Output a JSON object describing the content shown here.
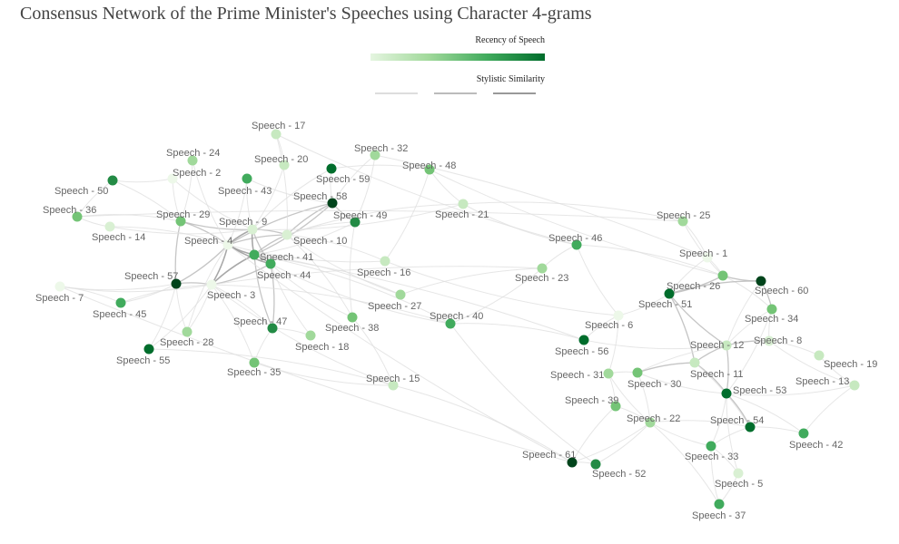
{
  "title": "Consensus Network of the Prime Minister's Speeches using Character 4-grams",
  "legend": {
    "recency_title": "Recency of Speech",
    "similarity_title": "Stylistic Similarity",
    "recency_colors": [
      "#e5f5e0",
      "#a1d99b",
      "#41ab5d",
      "#006d2c"
    ],
    "similarity_colors": [
      "#dddddd",
      "#bbbbbb",
      "#999999"
    ]
  },
  "nodes": [
    {
      "id": 17,
      "label": "Speech - 17",
      "color": "#c7e9c0"
    },
    {
      "id": 24,
      "label": "Speech - 24",
      "color": "#a1d99b"
    },
    {
      "id": 20,
      "label": "Speech - 20",
      "color": "#c7e9c0"
    },
    {
      "id": 32,
      "label": "Speech - 32",
      "color": "#a1d99b"
    },
    {
      "id": 2,
      "label": "Speech - 2",
      "color": "#edf8e9"
    },
    {
      "id": 59,
      "label": "Speech - 59",
      "color": "#006d2c"
    },
    {
      "id": 48,
      "label": "Speech - 48",
      "color": "#74c476"
    },
    {
      "id": 50,
      "label": "Speech - 50",
      "color": "#238b45"
    },
    {
      "id": 43,
      "label": "Speech - 43",
      "color": "#41ab5d"
    },
    {
      "id": 58,
      "label": "Speech - 58",
      "color": "#00441b"
    },
    {
      "id": 36,
      "label": "Speech - 36",
      "color": "#74c476"
    },
    {
      "id": 29,
      "label": "Speech - 29",
      "color": "#74c476"
    },
    {
      "id": 49,
      "label": "Speech - 49",
      "color": "#238b45"
    },
    {
      "id": 21,
      "label": "Speech - 21",
      "color": "#c7e9c0"
    },
    {
      "id": 25,
      "label": "Speech - 25",
      "color": "#a1d99b"
    },
    {
      "id": 9,
      "label": "Speech - 9",
      "color": "#d9f0d3"
    },
    {
      "id": 14,
      "label": "Speech - 14",
      "color": "#d9f0d3"
    },
    {
      "id": 4,
      "label": "Speech - 4",
      "color": "#edf8e9"
    },
    {
      "id": 10,
      "label": "Speech - 10",
      "color": "#d9f0d3"
    },
    {
      "id": 46,
      "label": "Speech - 46",
      "color": "#41ab5d"
    },
    {
      "id": 41,
      "label": "Speech - 41",
      "color": "#41ab5d"
    },
    {
      "id": 1,
      "label": "Speech - 1",
      "color": "#edf8e9"
    },
    {
      "id": 44,
      "label": "Speech - 44",
      "color": "#41ab5d"
    },
    {
      "id": 16,
      "label": "Speech - 16",
      "color": "#c7e9c0"
    },
    {
      "id": 23,
      "label": "Speech - 23",
      "color": "#a1d99b"
    },
    {
      "id": 57,
      "label": "Speech - 57",
      "color": "#00441b"
    },
    {
      "id": 7,
      "label": "Speech - 7",
      "color": "#edf8e9"
    },
    {
      "id": 26,
      "label": "Speech - 26",
      "color": "#74c476"
    },
    {
      "id": 60,
      "label": "Speech - 60",
      "color": "#00441b"
    },
    {
      "id": 3,
      "label": "Speech - 3",
      "color": "#edf8e9"
    },
    {
      "id": 51,
      "label": "Speech - 51",
      "color": "#006d2c"
    },
    {
      "id": 27,
      "label": "Speech - 27",
      "color": "#a1d99b"
    },
    {
      "id": 45,
      "label": "Speech - 45",
      "color": "#41ab5d"
    },
    {
      "id": 34,
      "label": "Speech - 34",
      "color": "#74c476"
    },
    {
      "id": 47,
      "label": "Speech - 47",
      "color": "#238b45"
    },
    {
      "id": 38,
      "label": "Speech - 38",
      "color": "#74c476"
    },
    {
      "id": 40,
      "label": "Speech - 40",
      "color": "#41ab5d"
    },
    {
      "id": 6,
      "label": "Speech - 6",
      "color": "#edf8e9"
    },
    {
      "id": 28,
      "label": "Speech - 28",
      "color": "#a1d99b"
    },
    {
      "id": 18,
      "label": "Speech - 18",
      "color": "#a1d99b"
    },
    {
      "id": 56,
      "label": "Speech - 56",
      "color": "#006d2c"
    },
    {
      "id": 8,
      "label": "Speech - 8",
      "color": "#d9f0d3"
    },
    {
      "id": 12,
      "label": "Speech - 12",
      "color": "#c7e9c0"
    },
    {
      "id": 55,
      "label": "Speech - 55",
      "color": "#006d2c"
    },
    {
      "id": 19,
      "label": "Speech - 19",
      "color": "#c7e9c0"
    },
    {
      "id": 35,
      "label": "Speech - 35",
      "color": "#74c476"
    },
    {
      "id": 31,
      "label": "Speech - 31",
      "color": "#a1d99b"
    },
    {
      "id": 11,
      "label": "Speech - 11",
      "color": "#c7e9c0"
    },
    {
      "id": 15,
      "label": "Speech - 15",
      "color": "#c7e9c0"
    },
    {
      "id": 13,
      "label": "Speech - 13",
      "color": "#c7e9c0"
    },
    {
      "id": 30,
      "label": "Speech - 30",
      "color": "#74c476"
    },
    {
      "id": 53,
      "label": "Speech - 53",
      "color": "#006d2c"
    },
    {
      "id": 39,
      "label": "Speech - 39",
      "color": "#74c476"
    },
    {
      "id": 22,
      "label": "Speech - 22",
      "color": "#a1d99b"
    },
    {
      "id": 54,
      "label": "Speech - 54",
      "color": "#006d2c"
    },
    {
      "id": 42,
      "label": "Speech - 42",
      "color": "#41ab5d"
    },
    {
      "id": 61,
      "label": "Speech - 61",
      "color": "#00441b"
    },
    {
      "id": 52,
      "label": "Speech - 52",
      "color": "#238b45"
    },
    {
      "id": 33,
      "label": "Speech - 33",
      "color": "#41ab5d"
    },
    {
      "id": 5,
      "label": "Speech - 5",
      "color": "#d9f0d3"
    },
    {
      "id": 37,
      "label": "Speech - 37",
      "color": "#41ab5d"
    }
  ],
  "edges": [
    [
      4,
      9,
      3
    ],
    [
      4,
      41,
      3
    ],
    [
      4,
      3,
      3
    ],
    [
      4,
      44,
      3
    ],
    [
      4,
      10,
      2
    ],
    [
      4,
      29,
      2
    ],
    [
      4,
      57,
      2
    ],
    [
      9,
      41,
      3
    ],
    [
      9,
      10,
      2
    ],
    [
      9,
      44,
      2
    ],
    [
      41,
      44,
      3
    ],
    [
      41,
      3,
      3
    ],
    [
      44,
      3,
      2
    ],
    [
      3,
      57,
      2
    ],
    [
      57,
      29,
      2
    ],
    [
      29,
      9,
      2
    ],
    [
      10,
      58,
      2
    ],
    [
      10,
      41,
      2
    ],
    [
      58,
      59,
      1
    ],
    [
      58,
      49,
      2
    ],
    [
      58,
      43,
      1
    ],
    [
      58,
      4,
      2
    ],
    [
      58,
      41,
      2
    ],
    [
      59,
      9,
      1
    ],
    [
      59,
      48,
      1
    ],
    [
      43,
      9,
      1
    ],
    [
      43,
      4,
      1
    ],
    [
      2,
      9,
      1
    ],
    [
      2,
      50,
      1
    ],
    [
      2,
      29,
      1
    ],
    [
      24,
      29,
      1
    ],
    [
      24,
      4,
      1
    ],
    [
      20,
      9,
      1
    ],
    [
      20,
      17,
      1
    ],
    [
      17,
      10,
      1
    ],
    [
      32,
      58,
      1
    ],
    [
      32,
      49,
      1
    ],
    [
      48,
      21,
      1
    ],
    [
      48,
      16,
      1
    ],
    [
      50,
      36,
      1
    ],
    [
      50,
      29,
      1
    ],
    [
      36,
      14,
      1
    ],
    [
      36,
      29,
      1
    ],
    [
      14,
      9,
      1
    ],
    [
      14,
      4,
      1
    ],
    [
      7,
      57,
      1
    ],
    [
      7,
      45,
      1
    ],
    [
      7,
      3,
      1
    ],
    [
      45,
      3,
      1
    ],
    [
      45,
      57,
      1
    ],
    [
      57,
      55,
      1
    ],
    [
      55,
      3,
      1
    ],
    [
      28,
      57,
      1
    ],
    [
      28,
      3,
      1
    ],
    [
      28,
      4,
      1
    ],
    [
      35,
      3,
      1
    ],
    [
      35,
      47,
      1
    ],
    [
      47,
      44,
      2
    ],
    [
      47,
      41,
      2
    ],
    [
      47,
      3,
      1
    ],
    [
      18,
      44,
      1
    ],
    [
      18,
      47,
      1
    ],
    [
      38,
      44,
      1
    ],
    [
      38,
      10,
      1
    ],
    [
      38,
      49,
      1
    ],
    [
      27,
      41,
      1
    ],
    [
      27,
      10,
      1
    ],
    [
      16,
      10,
      1
    ],
    [
      16,
      4,
      1
    ],
    [
      49,
      10,
      1
    ],
    [
      49,
      41,
      1
    ],
    [
      21,
      10,
      1
    ],
    [
      21,
      25,
      1
    ],
    [
      21,
      46,
      1
    ],
    [
      15,
      3,
      1
    ],
    [
      15,
      38,
      1
    ],
    [
      15,
      61,
      1
    ],
    [
      40,
      41,
      1
    ],
    [
      40,
      56,
      1
    ],
    [
      40,
      23,
      1
    ],
    [
      23,
      46,
      1
    ],
    [
      23,
      3,
      1
    ],
    [
      46,
      26,
      1
    ],
    [
      46,
      6,
      1
    ],
    [
      25,
      1,
      1
    ],
    [
      25,
      26,
      1
    ],
    [
      1,
      26,
      1
    ],
    [
      1,
      51,
      1
    ],
    [
      26,
      51,
      2
    ],
    [
      26,
      60,
      2
    ],
    [
      26,
      34,
      1
    ],
    [
      60,
      51,
      2
    ],
    [
      60,
      34,
      2
    ],
    [
      60,
      12,
      1
    ],
    [
      51,
      6,
      1
    ],
    [
      51,
      12,
      2
    ],
    [
      51,
      11,
      2
    ],
    [
      6,
      56,
      1
    ],
    [
      6,
      31,
      1
    ],
    [
      56,
      12,
      1
    ],
    [
      12,
      8,
      2
    ],
    [
      12,
      11,
      2
    ],
    [
      12,
      53,
      2
    ],
    [
      12,
      30,
      1
    ],
    [
      8,
      19,
      1
    ],
    [
      8,
      13,
      1
    ],
    [
      8,
      34,
      1
    ],
    [
      19,
      13,
      1
    ],
    [
      13,
      53,
      1
    ],
    [
      13,
      42,
      1
    ],
    [
      11,
      53,
      2
    ],
    [
      11,
      30,
      2
    ],
    [
      11,
      54,
      1
    ],
    [
      30,
      31,
      1
    ],
    [
      30,
      22,
      1
    ],
    [
      30,
      53,
      1
    ],
    [
      31,
      39,
      1
    ],
    [
      31,
      22,
      1
    ],
    [
      39,
      22,
      1
    ],
    [
      39,
      61,
      1
    ],
    [
      22,
      54,
      1
    ],
    [
      22,
      33,
      1
    ],
    [
      22,
      61,
      1
    ],
    [
      54,
      53,
      2
    ],
    [
      54,
      42,
      1
    ],
    [
      54,
      33,
      1
    ],
    [
      53,
      33,
      1
    ],
    [
      53,
      5,
      1
    ],
    [
      33,
      5,
      1
    ],
    [
      33,
      37,
      1
    ],
    [
      5,
      37,
      1
    ],
    [
      37,
      22,
      1
    ],
    [
      61,
      52,
      1
    ],
    [
      52,
      22,
      1
    ],
    [
      52,
      40,
      1
    ],
    [
      42,
      53,
      1
    ],
    [
      34,
      53,
      1
    ],
    [
      34,
      12,
      1
    ],
    [
      61,
      4,
      1
    ],
    [
      7,
      61,
      1
    ],
    [
      36,
      25,
      1
    ],
    [
      17,
      46,
      1
    ],
    [
      32,
      1,
      1
    ],
    [
      48,
      26,
      1
    ],
    [
      3,
      40,
      1
    ],
    [
      44,
      40,
      1
    ],
    [
      41,
      56,
      1
    ],
    [
      9,
      21,
      1
    ],
    [
      55,
      15,
      1
    ],
    [
      35,
      15,
      1
    ],
    [
      27,
      23,
      1
    ],
    [
      16,
      6,
      1
    ]
  ]
}
